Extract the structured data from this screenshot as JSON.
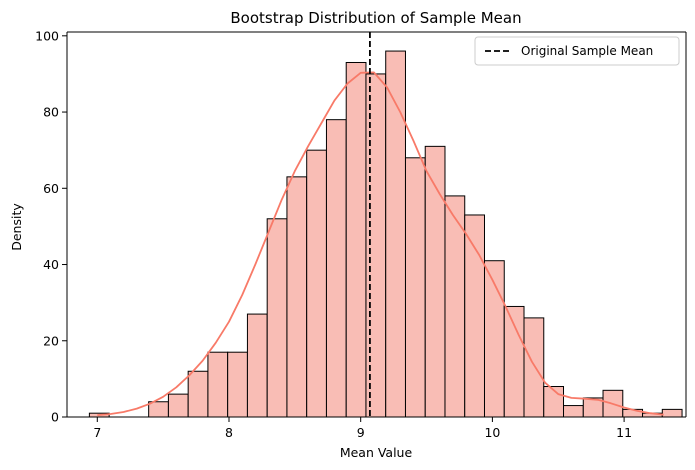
{
  "chart_data": {
    "type": "histogram",
    "title": "Bootstrap Distribution of Sample Mean",
    "xlabel": "Mean Value",
    "ylabel": "Density",
    "xlim": [
      6.77,
      11.47
    ],
    "ylim": [
      0,
      101
    ],
    "xticks": [
      7,
      8,
      9,
      10,
      11
    ],
    "yticks": [
      0,
      20,
      40,
      60,
      80,
      100
    ],
    "grid": false,
    "bar_fill": "#f9bdb5",
    "bar_edge": "#000000",
    "kde_color": "#f87a68",
    "bins": [
      {
        "x0": 6.94,
        "x1": 7.09,
        "count": 1
      },
      {
        "x0": 7.09,
        "x1": 7.24,
        "count": 0
      },
      {
        "x0": 7.24,
        "x1": 7.39,
        "count": 0
      },
      {
        "x0": 7.39,
        "x1": 7.54,
        "count": 4
      },
      {
        "x0": 7.54,
        "x1": 7.69,
        "count": 6
      },
      {
        "x0": 7.69,
        "x1": 7.84,
        "count": 12
      },
      {
        "x0": 7.84,
        "x1": 7.99,
        "count": 17
      },
      {
        "x0": 7.99,
        "x1": 8.14,
        "count": 17
      },
      {
        "x0": 8.14,
        "x1": 8.29,
        "count": 27
      },
      {
        "x0": 8.29,
        "x1": 8.44,
        "count": 52
      },
      {
        "x0": 8.44,
        "x1": 8.59,
        "count": 63
      },
      {
        "x0": 8.59,
        "x1": 8.74,
        "count": 70
      },
      {
        "x0": 8.74,
        "x1": 8.89,
        "count": 78
      },
      {
        "x0": 8.89,
        "x1": 9.04,
        "count": 93
      },
      {
        "x0": 9.04,
        "x1": 9.19,
        "count": 90
      },
      {
        "x0": 9.19,
        "x1": 9.34,
        "count": 96
      },
      {
        "x0": 9.34,
        "x1": 9.49,
        "count": 68
      },
      {
        "x0": 9.49,
        "x1": 9.64,
        "count": 71
      },
      {
        "x0": 9.64,
        "x1": 9.79,
        "count": 58
      },
      {
        "x0": 9.79,
        "x1": 9.94,
        "count": 53
      },
      {
        "x0": 9.94,
        "x1": 10.09,
        "count": 41
      },
      {
        "x0": 10.09,
        "x1": 10.24,
        "count": 29
      },
      {
        "x0": 10.24,
        "x1": 10.39,
        "count": 26
      },
      {
        "x0": 10.39,
        "x1": 10.54,
        "count": 8
      },
      {
        "x0": 10.54,
        "x1": 10.69,
        "count": 3
      },
      {
        "x0": 10.69,
        "x1": 10.84,
        "count": 5
      },
      {
        "x0": 10.84,
        "x1": 10.99,
        "count": 7
      },
      {
        "x0": 10.99,
        "x1": 11.14,
        "count": 2
      },
      {
        "x0": 11.14,
        "x1": 11.29,
        "count": 1
      },
      {
        "x0": 11.29,
        "x1": 11.44,
        "count": 2
      }
    ],
    "kde": {
      "x": [
        7.0,
        7.1,
        7.2,
        7.3,
        7.4,
        7.5,
        7.6,
        7.7,
        7.8,
        7.9,
        8.0,
        8.1,
        8.2,
        8.3,
        8.4,
        8.5,
        8.6,
        8.7,
        8.8,
        8.9,
        9.0,
        9.1,
        9.2,
        9.3,
        9.4,
        9.5,
        9.6,
        9.7,
        9.8,
        9.9,
        10.0,
        10.1,
        10.2,
        10.3,
        10.4,
        10.5,
        10.6,
        10.7,
        10.8,
        10.9,
        11.0,
        11.1,
        11.2,
        11.3
      ],
      "y": [
        0.5,
        0.8,
        1.3,
        2.2,
        3.5,
        5.3,
        7.8,
        11.0,
        14.8,
        19.5,
        25.0,
        32.0,
        40.0,
        48.5,
        57.0,
        64.5,
        71.0,
        77.0,
        83.0,
        87.5,
        90.3,
        90.4,
        86.5,
        80.0,
        72.5,
        64.5,
        58.5,
        53.0,
        48.0,
        42.5,
        36.0,
        29.0,
        21.5,
        14.5,
        9.0,
        6.0,
        5.0,
        4.8,
        4.5,
        3.6,
        2.5,
        1.6,
        1.0,
        0.6
      ]
    },
    "reference_line": {
      "x": 9.07,
      "label": "Original Sample Mean",
      "color": "#000000",
      "style": "dashed"
    },
    "legend": {
      "position": "top-right",
      "entries": [
        "Original Sample Mean"
      ]
    }
  }
}
